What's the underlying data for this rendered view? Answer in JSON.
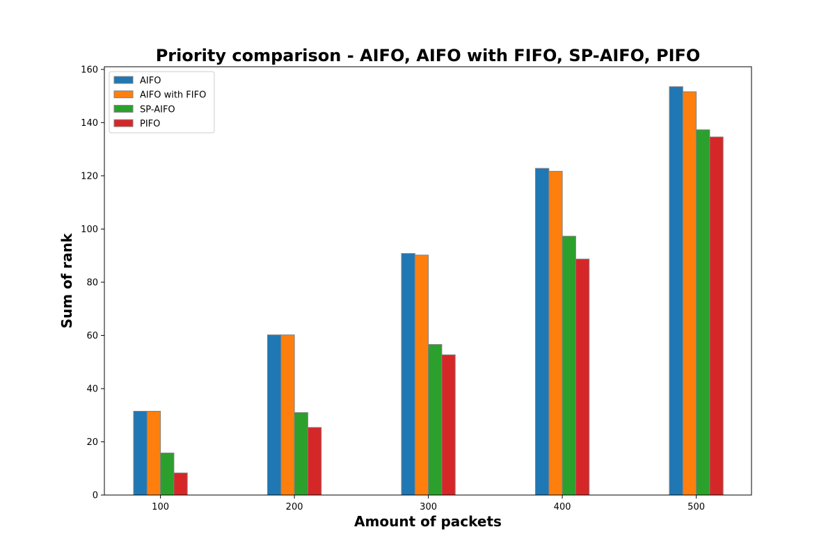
{
  "chart_data": {
    "type": "bar",
    "title": "Priority comparison - AIFO, AIFO with FIFO, SP-AIFO, PIFO",
    "xlabel": "Amount of packets",
    "ylabel": "Sum of rank",
    "categories": [
      "100",
      "200",
      "300",
      "400",
      "500"
    ],
    "series": [
      {
        "name": "AIFO",
        "color": "#1f77b4",
        "values": [
          31.5,
          60.2,
          90.8,
          122.8,
          153.5
        ]
      },
      {
        "name": "AIFO with FIFO",
        "color": "#ff7f0e",
        "values": [
          31.5,
          60.2,
          90.2,
          121.7,
          151.6
        ]
      },
      {
        "name": "SP-AIFO",
        "color": "#2ca02c",
        "values": [
          15.8,
          31.0,
          56.6,
          97.3,
          137.3
        ]
      },
      {
        "name": "PIFO",
        "color": "#d62728",
        "values": [
          8.3,
          25.4,
          52.7,
          88.7,
          134.6
        ]
      }
    ],
    "ylim": [
      0,
      161
    ],
    "yticks": [
      0,
      20,
      40,
      60,
      80,
      100,
      120,
      140,
      160
    ],
    "bar_edge_color": "#808080",
    "legend_position": "upper-left",
    "grid": false
  }
}
